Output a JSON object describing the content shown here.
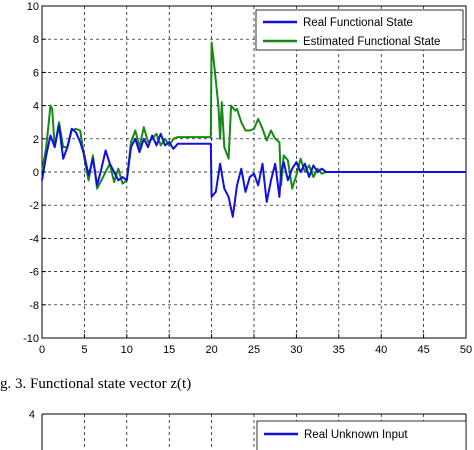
{
  "caption": "g. 3. Functional state vector z(t)",
  "colors": {
    "real": "#1010e0",
    "estimated": "#148a14"
  },
  "chart_data": [
    {
      "type": "line",
      "xlim": [
        0,
        50
      ],
      "ylim": [
        -10,
        10
      ],
      "x_ticks": [
        0,
        5,
        10,
        15,
        20,
        25,
        30,
        35,
        40,
        45,
        50
      ],
      "y_ticks": [
        -10,
        -8,
        -6,
        -4,
        -2,
        0,
        2,
        4,
        6,
        8,
        10
      ],
      "grid": true,
      "legend_position": "top-right",
      "series": [
        {
          "name": "Real Functional State",
          "color": "#1010e0",
          "x": [
            0,
            0.5,
            1,
            1.5,
            2,
            2.5,
            3,
            3.5,
            4,
            4.5,
            5,
            5.5,
            6,
            6.5,
            7,
            7.5,
            8,
            8.5,
            9,
            9.5,
            10,
            10.5,
            11,
            11.5,
            12,
            12.5,
            13,
            13.5,
            14,
            14.5,
            15,
            15.5,
            16,
            17,
            18,
            19,
            19.9,
            20,
            20.5,
            21,
            21.5,
            22,
            22.5,
            23,
            23.5,
            24,
            24.5,
            25,
            25.5,
            26,
            26.5,
            27,
            27.5,
            28,
            28.2,
            28.5,
            29,
            29.5,
            30,
            30.5,
            31,
            31.5,
            32,
            32.5,
            33,
            33.5,
            34,
            35,
            36,
            37,
            40,
            45,
            50
          ],
          "y": [
            -0.5,
            1.0,
            2.2,
            1.5,
            2.8,
            0.8,
            1.5,
            2.6,
            2.4,
            1.8,
            1.0,
            -0.2,
            0.8,
            -0.8,
            0.2,
            1.3,
            0.5,
            0.0,
            -0.5,
            -0.3,
            -0.5,
            1.5,
            2.0,
            1.2,
            2.0,
            1.5,
            2.2,
            1.6,
            2.3,
            1.6,
            1.8,
            1.4,
            1.7,
            1.7,
            1.7,
            1.7,
            1.7,
            -1.5,
            -1.2,
            0.5,
            -1.0,
            -1.5,
            -2.7,
            -0.8,
            0.2,
            -1.2,
            -0.3,
            -0.1,
            -0.8,
            0.5,
            -1.8,
            -0.5,
            0.5,
            -1.5,
            0.0,
            0.6,
            -0.5,
            0.2,
            0.6,
            0.0,
            0.5,
            -0.3,
            0.4,
            0.0,
            0.2,
            0.0,
            0.0,
            0.0,
            0.0,
            0.0,
            0.0,
            0.0,
            0.0
          ]
        },
        {
          "name": "Estimated Functional State",
          "color": "#148a14",
          "x": [
            0,
            0.5,
            1,
            1.2,
            1.5,
            2,
            2.5,
            3,
            3.5,
            4,
            4.5,
            5,
            5.5,
            6,
            6.5,
            7,
            7.5,
            8,
            8.5,
            9,
            9.5,
            10,
            10.5,
            11,
            11.5,
            12,
            12.5,
            13,
            13.5,
            14,
            14.5,
            15,
            15.5,
            16,
            17,
            18,
            19,
            19.9,
            20,
            20.3,
            20.8,
            21,
            21.2,
            21.5,
            22,
            22.3,
            22.8,
            23,
            23.5,
            24,
            24.5,
            25,
            25.5,
            26,
            26.5,
            27,
            27.5,
            28,
            28.2,
            28.5,
            29,
            29.5,
            30,
            30.5,
            31,
            31.5,
            32,
            32.5,
            33,
            33.5,
            34,
            35,
            36,
            37,
            40,
            45,
            50
          ],
          "y": [
            0,
            1.5,
            4.0,
            3.8,
            1.5,
            3.0,
            1.5,
            1.5,
            2.5,
            2.6,
            2.5,
            0.8,
            -0.5,
            1.0,
            -1.0,
            -0.5,
            0.0,
            0.5,
            -0.6,
            0.2,
            -0.7,
            -0.5,
            1.8,
            2.5,
            1.5,
            2.7,
            1.8,
            2.0,
            2.3,
            1.6,
            2.0,
            1.6,
            2.0,
            2.1,
            2.1,
            2.1,
            2.1,
            2.1,
            7.8,
            6.5,
            4.0,
            2.0,
            4.2,
            1.5,
            0.8,
            4.0,
            3.7,
            3.8,
            3.0,
            2.5,
            2.5,
            2.6,
            3.2,
            2.6,
            1.9,
            2.5,
            2.0,
            1.8,
            -0.8,
            1.0,
            0.7,
            -1.0,
            -0.2,
            0.8,
            0.0,
            0.4,
            -0.3,
            0.2,
            -0.1,
            0.0,
            0.0,
            0.0,
            0.0,
            0.0,
            0.0,
            0.0,
            0.0
          ]
        }
      ]
    },
    {
      "type": "line",
      "ylim_top": 4,
      "y_ticks": [
        4
      ],
      "grid": true,
      "legend_position": "top-right",
      "series": [
        {
          "name": "Real Unknown Input",
          "color": "#1010e0"
        }
      ]
    }
  ]
}
